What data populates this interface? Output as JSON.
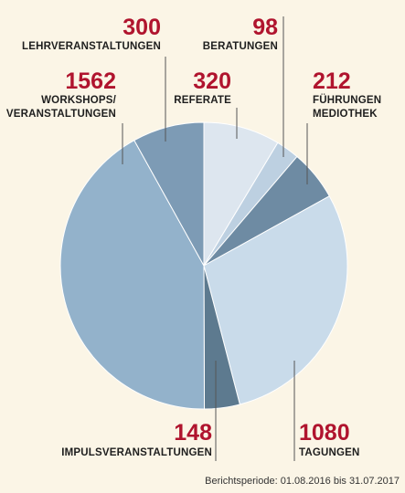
{
  "chart_data": {
    "type": "pie",
    "slices": [
      {
        "value": 320,
        "label": "REFERATE",
        "color": "#dde6ef"
      },
      {
        "value": 98,
        "label": "BERATUNGEN",
        "color": "#bdd0e1"
      },
      {
        "value": 212,
        "label": "FÜHRUNGEN MEDIOTHEK",
        "color": "#6e8ba3"
      },
      {
        "value": 1080,
        "label": "TAGUNGEN",
        "color": "#c9dbea"
      },
      {
        "value": 148,
        "label": "IMPULSVERANSTALTUNGEN",
        "color": "#5d7a8f"
      },
      {
        "value": 1562,
        "label": "WORKSHOPS/ VERANSTALTUNGEN",
        "color": "#93b2cb"
      },
      {
        "value": 300,
        "label": "LEHRVERANSTALTUNGEN",
        "color": "#7d9bb5"
      }
    ],
    "annotations": {
      "lehr": {
        "value": "300",
        "label": "LEHRVERANSTALTUNGEN"
      },
      "beratung": {
        "value": "98",
        "label": "BERATUNGEN"
      },
      "workshop": {
        "value": "1562",
        "label_line1": "WORKSHOPS/",
        "label_line2": "VERANSTALTUNGEN"
      },
      "referate": {
        "value": "320",
        "label": "REFERATE"
      },
      "fuehrung": {
        "value": "212",
        "label_line1": "FÜHRUNGEN",
        "label_line2": "MEDIOTHEK"
      },
      "impuls": {
        "value": "148",
        "label": "IMPULSVERANSTALTUNGEN"
      },
      "tagung": {
        "value": "1080",
        "label": "TAGUNGEN"
      }
    },
    "footnote": "Berichtsperiode: 01.08.2016 bis 31.07.2017"
  }
}
